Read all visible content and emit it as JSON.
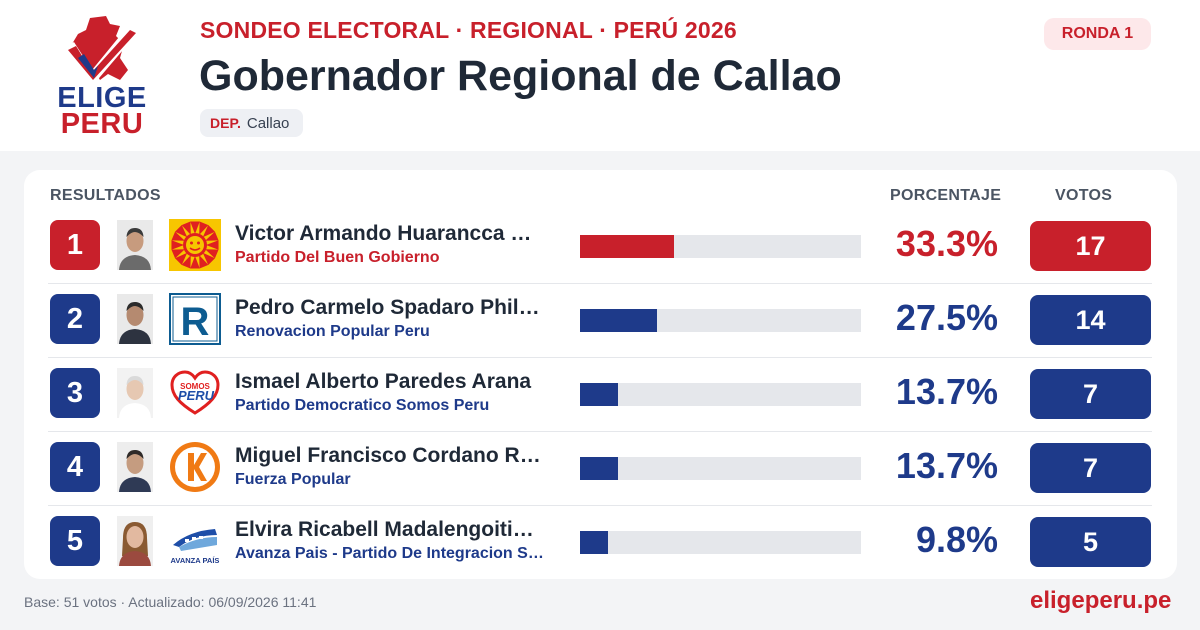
{
  "header": {
    "kicker": "SONDEO ELECTORAL · REGIONAL · PERÚ 2026",
    "title": "Gobernador Regional de Callao",
    "dept_label": "DEP.",
    "dept_value": "Callao",
    "round": "RONDA 1",
    "logo_line1": "ELIGE",
    "logo_line2": "PERU"
  },
  "table": {
    "col_results": "RESULTADOS",
    "col_percent": "PORCENTAJE",
    "col_votes": "VOTOS"
  },
  "colors": {
    "leader": "#c8202b",
    "others": "#1e3a8a"
  },
  "candidates": [
    {
      "rank": "1",
      "name": "Victor Armando Huarancca Quispe",
      "party": "Partido Del Buen Gobierno",
      "percent": "33.3%",
      "share": 33.3,
      "votes": "17",
      "party_icon": "sun-logo-icon"
    },
    {
      "rank": "2",
      "name": "Pedro Carmelo Spadaro Philipps",
      "party": "Renovacion Popular Peru",
      "percent": "27.5%",
      "share": 27.5,
      "votes": "14",
      "party_icon": "letter-r-logo-icon"
    },
    {
      "rank": "3",
      "name": "Ismael Alberto Paredes Arana",
      "party": "Partido Democratico Somos Peru",
      "percent": "13.7%",
      "share": 13.7,
      "votes": "7",
      "party_icon": "heart-logo-icon"
    },
    {
      "rank": "4",
      "name": "Miguel Francisco Cordano Rodriguez",
      "party": "Fuerza Popular",
      "percent": "13.7%",
      "share": 13.7,
      "votes": "7",
      "party_icon": "letter-k-logo-icon"
    },
    {
      "rank": "5",
      "name": "Elvira Ricabell Madalengoitia Diaz",
      "party": "Avanza Pais - Partido De Integracion Social",
      "percent": "9.8%",
      "share": 9.8,
      "votes": "5",
      "party_icon": "train-logo-icon"
    }
  ],
  "footer": {
    "base": "Base: 51 votos · Actualizado: 06/09/2026 11:41",
    "site": "eligeperu.pe"
  }
}
